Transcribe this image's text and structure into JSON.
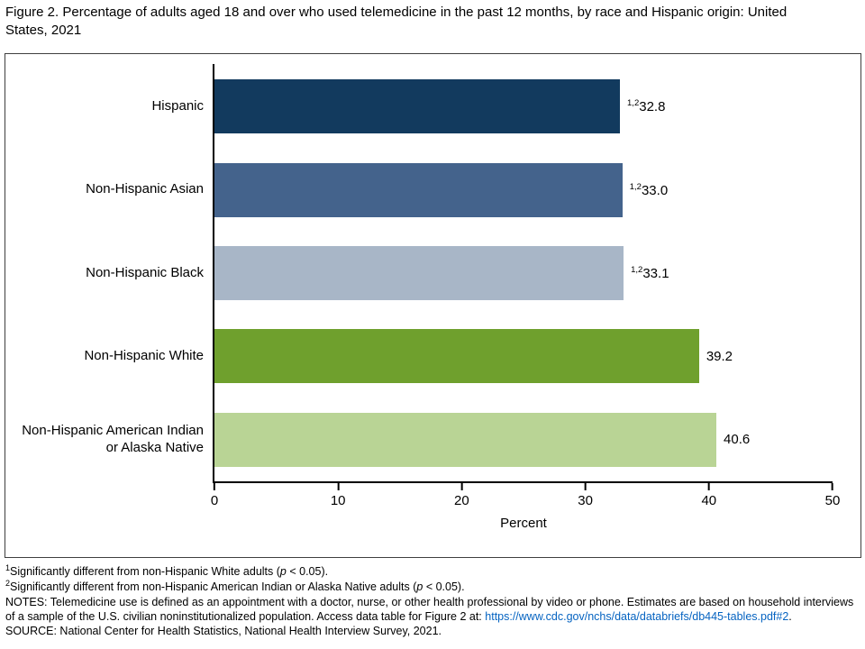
{
  "title": "Figure 2. Percentage of adults aged 18 and over who used telemedicine in the past 12 months, by race and Hispanic origin: United States, 2021",
  "chart_data": {
    "type": "bar",
    "orientation": "horizontal",
    "categories": [
      "Hispanic",
      "Non-Hispanic Asian",
      "Non-Hispanic Black",
      "Non-Hispanic White",
      "Non-Hispanic American Indian or Alaska Native"
    ],
    "values": [
      32.8,
      33.0,
      33.1,
      39.2,
      40.6
    ],
    "value_labels": [
      "32.8",
      "33.0",
      "33.1",
      "39.2",
      "40.6"
    ],
    "value_superscripts": [
      "1,2",
      "1,2",
      "1,2",
      "",
      ""
    ],
    "bar_colors": [
      "#123a5e",
      "#44638c",
      "#a8b6c7",
      "#6fa02d",
      "#b9d495"
    ],
    "xlabel": "Percent",
    "xlim": [
      0,
      50
    ],
    "xticks": [
      0,
      10,
      20,
      30,
      40,
      50
    ],
    "grid": false,
    "legend": false
  },
  "footnotes": {
    "fn1": {
      "sup": "1",
      "before_p": "Significantly different from non-Hispanic White adults (",
      "p_italic": "p",
      "after_p": " < 0.05)."
    },
    "fn2": {
      "sup": "2",
      "before_p": "Significantly different from non-Hispanic American Indian or Alaska Native adults (",
      "p_italic": "p",
      "after_p": " < 0.05)."
    },
    "notes_before_link": "NOTES: Telemedicine use is defined as an appointment with a doctor, nurse, or other health professional by video or phone. Estimates are based on household interviews of a sample of the U.S. civilian noninstitutionalized population. Access data table for Figure 2 at: ",
    "notes_link": "https://www.cdc.gov/nchs/data/databriefs/db445-tables.pdf#2",
    "notes_after_link": ".",
    "source": "SOURCE: National Center for Health Statistics, National Health Interview Survey, 2021."
  },
  "colors": {
    "link": "#0563c1",
    "axis": "#000000",
    "frame_border": "#3f3f3f"
  }
}
